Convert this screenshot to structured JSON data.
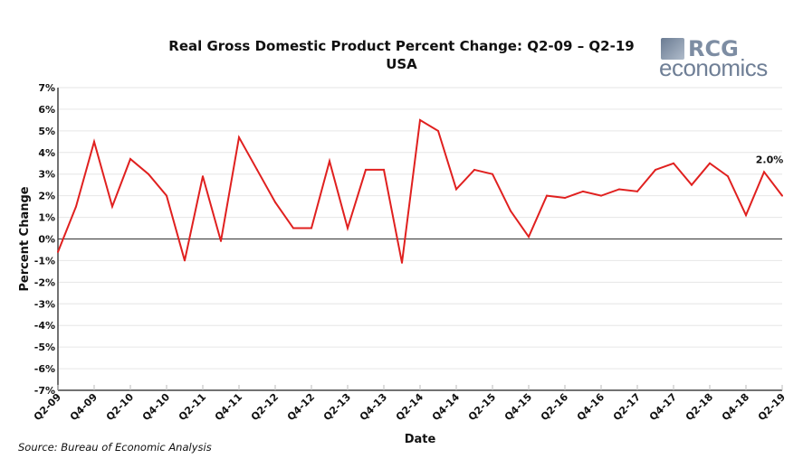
{
  "chart_data": {
    "type": "line",
    "title": "Real Gross Domestic Product Percent Change: Q2-09 – Q2-19",
    "subtitle": "USA",
    "xlabel": "Date",
    "ylabel": "Percent Change",
    "ylim": [
      -7,
      7
    ],
    "yticks": [
      "7%",
      "6%",
      "5%",
      "4%",
      "3%",
      "2%",
      "1%",
      "0%",
      "-1%",
      "-2%",
      "-3%",
      "-4%",
      "-5%",
      "-6%",
      "-7%"
    ],
    "xtick_labels": [
      "Q2-09",
      "Q4-09",
      "Q2-10",
      "Q4-10",
      "Q2-11",
      "Q4-11",
      "Q2-12",
      "Q4-12",
      "Q2-13",
      "Q4-13",
      "Q2-14",
      "Q4-14",
      "Q2-15",
      "Q4-15",
      "Q2-16",
      "Q4-16",
      "Q2-17",
      "Q4-17",
      "Q2-18",
      "Q4-18",
      "Q2-19"
    ],
    "x": [
      "Q2-09",
      "Q3-09",
      "Q4-09",
      "Q1-10",
      "Q2-10",
      "Q3-10",
      "Q4-10",
      "Q1-11",
      "Q2-11",
      "Q3-11",
      "Q4-11",
      "Q1-12",
      "Q2-12",
      "Q3-12",
      "Q4-12",
      "Q1-13",
      "Q2-13",
      "Q3-13",
      "Q4-13",
      "Q1-14",
      "Q2-14",
      "Q3-14",
      "Q4-14",
      "Q1-15",
      "Q2-15",
      "Q3-15",
      "Q4-15",
      "Q1-16",
      "Q2-16",
      "Q3-16",
      "Q4-16",
      "Q1-17",
      "Q2-17",
      "Q3-17",
      "Q4-17",
      "Q1-18",
      "Q2-18",
      "Q3-18",
      "Q4-18",
      "Q1-19",
      "Q2-19"
    ],
    "series": [
      {
        "name": "Real GDP % change",
        "color": "#e0201f",
        "values": [
          -0.6,
          1.5,
          4.5,
          1.5,
          3.7,
          3.0,
          2.0,
          -1.0,
          2.9,
          -0.1,
          4.7,
          3.2,
          1.7,
          0.5,
          0.5,
          3.6,
          0.5,
          3.2,
          3.2,
          -1.1,
          5.5,
          5.0,
          2.3,
          3.2,
          3.0,
          1.3,
          0.1,
          2.0,
          1.9,
          2.2,
          2.0,
          2.3,
          2.2,
          3.2,
          3.5,
          2.5,
          3.5,
          2.9,
          1.1,
          3.1,
          2.0
        ]
      }
    ],
    "annotation": "2.0%",
    "grid": true,
    "legend": "none"
  },
  "logo": {
    "top": "RCG",
    "bottom": "economics"
  },
  "source": "Source: Bureau of Economic Analysis"
}
